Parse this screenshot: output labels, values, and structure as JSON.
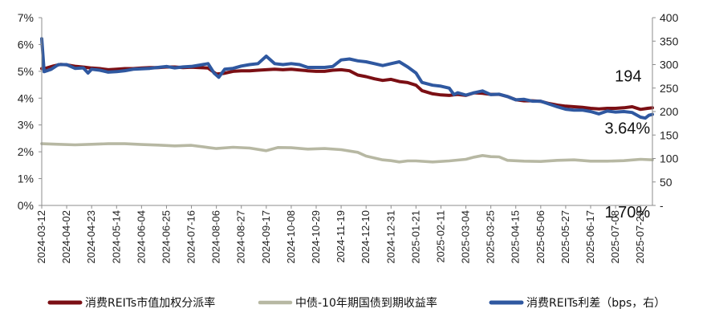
{
  "chart_data": {
    "type": "line",
    "title": "",
    "xlabel": "",
    "ylabel_left": "",
    "ylabel_right": "",
    "ylim_left": [
      0,
      7
    ],
    "ylim_right": [
      0,
      400
    ],
    "y_left_ticks": [
      "0%",
      "1%",
      "2%",
      "3%",
      "4%",
      "5%",
      "6%",
      "7%"
    ],
    "y_right_ticks": [
      "-",
      "50",
      "100",
      "150",
      "200",
      "250",
      "300",
      "350",
      "400"
    ],
    "x_range": [
      "2024-03-12",
      "2025-08-08"
    ],
    "x_ticks": [
      "2024-03-12",
      "2024-04-02",
      "2024-04-23",
      "2024-05-14",
      "2024-06-04",
      "2024-06-25",
      "2024-07-16",
      "2024-08-06",
      "2024-08-27",
      "2024-09-17",
      "2024-10-08",
      "2024-10-29",
      "2024-11-19",
      "2024-12-10",
      "2024-12-31",
      "2025-01-21",
      "2025-02-11",
      "2025-03-04",
      "2025-03-25",
      "2025-04-15",
      "2025-05-06",
      "2025-05-27",
      "2025-06-17",
      "2025-07-08",
      "2025-07-29"
    ],
    "grid": false,
    "legend_position": "bottom",
    "series": [
      {
        "name": "消费REITs市值加权分派率",
        "axis": "left",
        "unit": "%",
        "color": "#7b0f14",
        "points": [
          [
            "2024-03-12",
            5.1
          ],
          [
            "2024-03-16",
            5.12
          ],
          [
            "2024-03-22",
            5.2
          ],
          [
            "2024-03-28",
            5.26
          ],
          [
            "2024-04-02",
            5.24
          ],
          [
            "2024-04-10",
            5.18
          ],
          [
            "2024-04-17",
            5.15
          ],
          [
            "2024-04-23",
            5.12
          ],
          [
            "2024-04-30",
            5.1
          ],
          [
            "2024-05-07",
            5.06
          ],
          [
            "2024-05-14",
            5.08
          ],
          [
            "2024-05-21",
            5.1
          ],
          [
            "2024-05-28",
            5.1
          ],
          [
            "2024-06-04",
            5.12
          ],
          [
            "2024-06-11",
            5.14
          ],
          [
            "2024-06-18",
            5.14
          ],
          [
            "2024-06-25",
            5.16
          ],
          [
            "2024-07-02",
            5.16
          ],
          [
            "2024-07-09",
            5.14
          ],
          [
            "2024-07-16",
            5.15
          ],
          [
            "2024-07-23",
            5.14
          ],
          [
            "2024-07-30",
            5.12
          ],
          [
            "2024-08-06",
            4.9
          ],
          [
            "2024-08-12",
            4.92
          ],
          [
            "2024-08-20",
            5.0
          ],
          [
            "2024-08-27",
            5.02
          ],
          [
            "2024-09-03",
            5.02
          ],
          [
            "2024-09-10",
            5.04
          ],
          [
            "2024-09-17",
            5.06
          ],
          [
            "2024-09-24",
            5.08
          ],
          [
            "2024-10-01",
            5.06
          ],
          [
            "2024-10-08",
            5.08
          ],
          [
            "2024-10-15",
            5.05
          ],
          [
            "2024-10-22",
            5.02
          ],
          [
            "2024-10-29",
            5.0
          ],
          [
            "2024-11-05",
            5.0
          ],
          [
            "2024-11-12",
            5.04
          ],
          [
            "2024-11-19",
            5.06
          ],
          [
            "2024-11-26",
            5.02
          ],
          [
            "2024-12-03",
            4.86
          ],
          [
            "2024-12-10",
            4.8
          ],
          [
            "2024-12-17",
            4.72
          ],
          [
            "2024-12-24",
            4.66
          ],
          [
            "2024-12-31",
            4.7
          ],
          [
            "2025-01-07",
            4.62
          ],
          [
            "2025-01-14",
            4.58
          ],
          [
            "2025-01-21",
            4.48
          ],
          [
            "2025-01-26",
            4.28
          ],
          [
            "2025-02-04",
            4.16
          ],
          [
            "2025-02-11",
            4.12
          ],
          [
            "2025-02-18",
            4.1
          ],
          [
            "2025-02-25",
            4.14
          ],
          [
            "2025-03-04",
            4.1
          ],
          [
            "2025-03-11",
            4.2
          ],
          [
            "2025-03-18",
            4.18
          ],
          [
            "2025-03-25",
            4.14
          ],
          [
            "2025-04-01",
            4.14
          ],
          [
            "2025-04-08",
            4.06
          ],
          [
            "2025-04-15",
            3.94
          ],
          [
            "2025-04-22",
            3.9
          ],
          [
            "2025-04-29",
            3.9
          ],
          [
            "2025-05-06",
            3.88
          ],
          [
            "2025-05-13",
            3.8
          ],
          [
            "2025-05-20",
            3.74
          ],
          [
            "2025-05-27",
            3.7
          ],
          [
            "2025-06-03",
            3.68
          ],
          [
            "2025-06-10",
            3.66
          ],
          [
            "2025-06-17",
            3.62
          ],
          [
            "2025-06-24",
            3.6
          ],
          [
            "2025-07-01",
            3.62
          ],
          [
            "2025-07-08",
            3.62
          ],
          [
            "2025-07-15",
            3.64
          ],
          [
            "2025-07-22",
            3.68
          ],
          [
            "2025-07-29",
            3.58
          ],
          [
            "2025-08-04",
            3.62
          ],
          [
            "2025-08-08",
            3.64
          ]
        ]
      },
      {
        "name": "中债-10年期国债到期收益率",
        "axis": "left",
        "unit": "%",
        "color": "#b7b8a3",
        "points": [
          [
            "2024-03-12",
            2.3
          ],
          [
            "2024-03-26",
            2.28
          ],
          [
            "2024-04-09",
            2.26
          ],
          [
            "2024-04-23",
            2.28
          ],
          [
            "2024-05-07",
            2.3
          ],
          [
            "2024-05-21",
            2.3
          ],
          [
            "2024-06-04",
            2.27
          ],
          [
            "2024-06-18",
            2.25
          ],
          [
            "2024-07-02",
            2.22
          ],
          [
            "2024-07-16",
            2.24
          ],
          [
            "2024-07-30",
            2.16
          ],
          [
            "2024-08-06",
            2.12
          ],
          [
            "2024-08-20",
            2.17
          ],
          [
            "2024-09-03",
            2.14
          ],
          [
            "2024-09-17",
            2.04
          ],
          [
            "2024-09-27",
            2.16
          ],
          [
            "2024-10-08",
            2.15
          ],
          [
            "2024-10-22",
            2.1
          ],
          [
            "2024-11-05",
            2.12
          ],
          [
            "2024-11-19",
            2.08
          ],
          [
            "2024-12-03",
            1.98
          ],
          [
            "2024-12-10",
            1.84
          ],
          [
            "2024-12-24",
            1.7
          ],
          [
            "2024-12-31",
            1.67
          ],
          [
            "2025-01-07",
            1.62
          ],
          [
            "2025-01-14",
            1.66
          ],
          [
            "2025-01-21",
            1.66
          ],
          [
            "2025-02-04",
            1.62
          ],
          [
            "2025-02-18",
            1.66
          ],
          [
            "2025-03-04",
            1.72
          ],
          [
            "2025-03-11",
            1.8
          ],
          [
            "2025-03-18",
            1.86
          ],
          [
            "2025-03-25",
            1.82
          ],
          [
            "2025-04-01",
            1.81
          ],
          [
            "2025-04-08",
            1.68
          ],
          [
            "2025-04-22",
            1.65
          ],
          [
            "2025-05-06",
            1.64
          ],
          [
            "2025-05-20",
            1.68
          ],
          [
            "2025-06-03",
            1.7
          ],
          [
            "2025-06-17",
            1.65
          ],
          [
            "2025-07-01",
            1.65
          ],
          [
            "2025-07-15",
            1.67
          ],
          [
            "2025-07-29",
            1.72
          ],
          [
            "2025-08-08",
            1.7
          ]
        ]
      },
      {
        "name": "消费REITs利差（bps，右）",
        "axis": "right",
        "unit": "bps",
        "color": "#2f58a0",
        "points": [
          [
            "2024-03-12",
            355
          ],
          [
            "2024-03-14",
            285
          ],
          [
            "2024-03-20",
            290
          ],
          [
            "2024-03-26",
            300
          ],
          [
            "2024-04-02",
            300
          ],
          [
            "2024-04-09",
            292
          ],
          [
            "2024-04-16",
            293
          ],
          [
            "2024-04-20",
            282
          ],
          [
            "2024-04-23",
            290
          ],
          [
            "2024-04-30",
            288
          ],
          [
            "2024-05-07",
            284
          ],
          [
            "2024-05-14",
            285
          ],
          [
            "2024-05-21",
            287
          ],
          [
            "2024-05-28",
            290
          ],
          [
            "2024-06-04",
            291
          ],
          [
            "2024-06-11",
            292
          ],
          [
            "2024-06-18",
            294
          ],
          [
            "2024-06-25",
            296
          ],
          [
            "2024-07-02",
            293
          ],
          [
            "2024-07-09",
            295
          ],
          [
            "2024-07-16",
            296
          ],
          [
            "2024-07-23",
            299
          ],
          [
            "2024-07-30",
            302
          ],
          [
            "2024-08-04",
            282
          ],
          [
            "2024-08-08",
            273
          ],
          [
            "2024-08-13",
            290
          ],
          [
            "2024-08-20",
            292
          ],
          [
            "2024-08-27",
            297
          ],
          [
            "2024-09-03",
            300
          ],
          [
            "2024-09-10",
            302
          ],
          [
            "2024-09-17",
            318
          ],
          [
            "2024-09-24",
            302
          ],
          [
            "2024-10-01",
            300
          ],
          [
            "2024-10-08",
            302
          ],
          [
            "2024-10-15",
            300
          ],
          [
            "2024-10-22",
            294
          ],
          [
            "2024-10-29",
            294
          ],
          [
            "2024-11-05",
            294
          ],
          [
            "2024-11-12",
            296
          ],
          [
            "2024-11-19",
            310
          ],
          [
            "2024-11-26",
            312
          ],
          [
            "2024-12-03",
            308
          ],
          [
            "2024-12-10",
            306
          ],
          [
            "2024-12-17",
            302
          ],
          [
            "2024-12-24",
            298
          ],
          [
            "2024-12-31",
            302
          ],
          [
            "2025-01-07",
            306
          ],
          [
            "2025-01-14",
            295
          ],
          [
            "2025-01-21",
            282
          ],
          [
            "2025-01-26",
            262
          ],
          [
            "2025-02-04",
            256
          ],
          [
            "2025-02-11",
            254
          ],
          [
            "2025-02-18",
            250
          ],
          [
            "2025-02-22",
            236
          ],
          [
            "2025-02-25",
            240
          ],
          [
            "2025-03-04",
            235
          ],
          [
            "2025-03-11",
            240
          ],
          [
            "2025-03-18",
            244
          ],
          [
            "2025-03-25",
            236
          ],
          [
            "2025-04-01",
            237
          ],
          [
            "2025-04-08",
            232
          ],
          [
            "2025-04-15",
            225
          ],
          [
            "2025-04-22",
            226
          ],
          [
            "2025-04-29",
            222
          ],
          [
            "2025-05-06",
            222
          ],
          [
            "2025-05-13",
            216
          ],
          [
            "2025-05-20",
            210
          ],
          [
            "2025-05-27",
            205
          ],
          [
            "2025-06-03",
            203
          ],
          [
            "2025-06-10",
            203
          ],
          [
            "2025-06-17",
            200
          ],
          [
            "2025-06-24",
            195
          ],
          [
            "2025-07-01",
            201
          ],
          [
            "2025-07-08",
            199
          ],
          [
            "2025-07-15",
            200
          ],
          [
            "2025-07-22",
            198
          ],
          [
            "2025-07-29",
            188
          ],
          [
            "2025-08-02",
            186
          ],
          [
            "2025-08-05",
            192
          ],
          [
            "2025-08-08",
            194
          ]
        ]
      }
    ],
    "annotations": [
      {
        "text": "194",
        "series": 2,
        "x": "2025-07-22",
        "y": 194
      },
      {
        "text": "3.64%",
        "series": 0,
        "x": "2025-07-22",
        "y": 3.64
      },
      {
        "text": "1.70%",
        "series": 1,
        "x": "2025-07-22",
        "y": 1.7
      }
    ]
  }
}
